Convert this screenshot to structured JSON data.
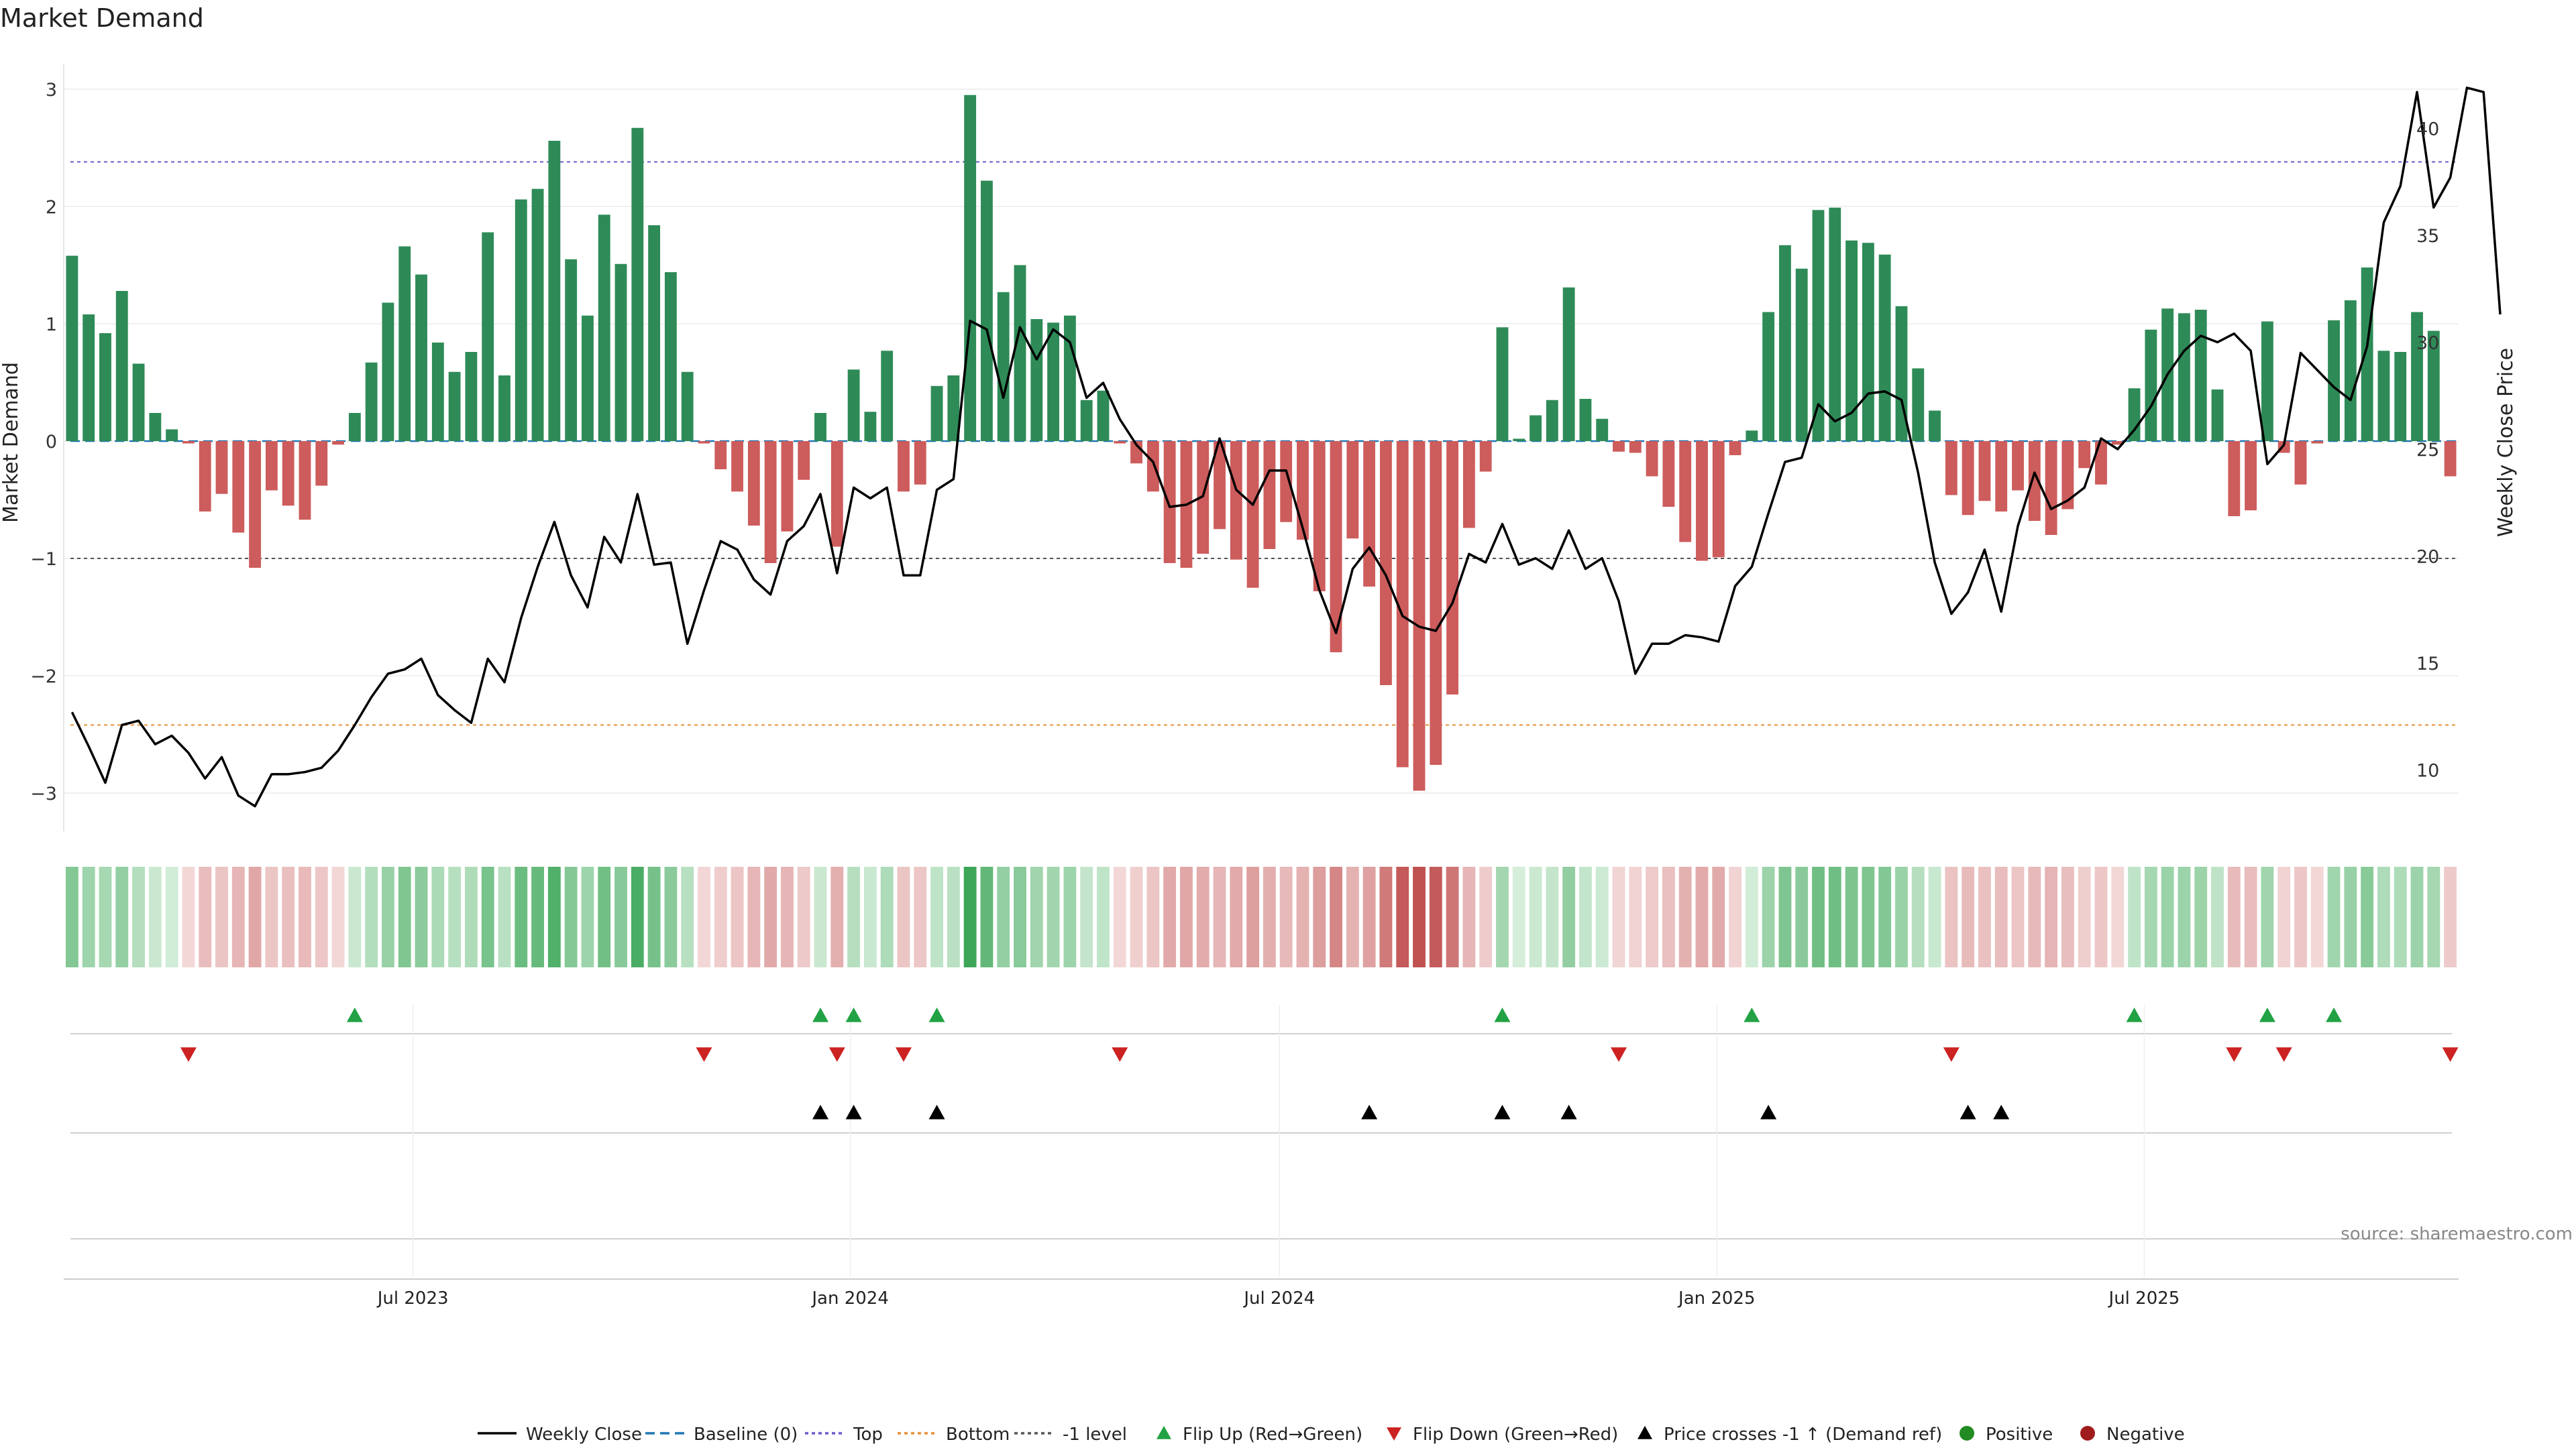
{
  "chart_data": {
    "type": "bar",
    "title": "Market Demand",
    "ylabel": "Market Demand",
    "y2label": "Weekly Close Price",
    "ylim": [
      -3.3,
      3.15
    ],
    "y2lim": [
      8.5,
      43.5
    ],
    "yticks": [
      "3",
      "2",
      "1",
      "0",
      "−1",
      "−2",
      "−3"
    ],
    "yticks_values": [
      3,
      2,
      1,
      0,
      -1,
      -2,
      -3
    ],
    "y2ticks": [
      "40",
      "35",
      "30",
      "25",
      "20",
      "15",
      "10"
    ],
    "y2ticks_values": [
      40,
      35,
      30,
      25,
      20,
      15,
      10
    ],
    "xticks": [
      {
        "label": "Jul 2023",
        "index": 20.5
      },
      {
        "label": "Jan 2024",
        "index": 46.8
      },
      {
        "label": "Jul 2024",
        "index": 72.6
      },
      {
        "label": "Jan 2025",
        "index": 98.9
      },
      {
        "label": "Jul 2025",
        "index": 124.6
      }
    ],
    "reference_lines": {
      "top": 2.38,
      "bottom": -2.42,
      "minus_one": -1,
      "baseline": 0
    },
    "colors": {
      "positive": "#2e8b57",
      "negative": "#cd5c5c",
      "close": "#000000",
      "top_line": "#6a5acd",
      "bottom_line": "#e69138",
      "minus_one_line": "#555555",
      "baseline_line": "#1f77b4",
      "flip_up": "#22a244",
      "flip_down": "#cc2222",
      "cross": "#000000",
      "legend_positive": "#228b22",
      "legend_negative": "#a01c1c"
    },
    "demand": [
      1.58,
      1.08,
      0.92,
      1.28,
      0.66,
      0.24,
      0.1,
      -0.02,
      -0.6,
      -0.45,
      -0.78,
      -1.08,
      -0.42,
      -0.55,
      -0.67,
      -0.38,
      -0.03,
      0.24,
      0.67,
      1.18,
      1.66,
      1.42,
      0.84,
      0.59,
      0.76,
      1.78,
      0.56,
      2.06,
      2.15,
      2.56,
      1.55,
      1.07,
      1.93,
      1.51,
      2.67,
      1.84,
      1.44,
      0.59,
      -0.02,
      -0.24,
      -0.43,
      -0.72,
      -1.04,
      -0.77,
      -0.33,
      0.24,
      -0.9,
      0.61,
      0.25,
      0.77,
      -0.43,
      -0.37,
      0.47,
      0.56,
      2.95,
      2.22,
      1.27,
      1.5,
      1.04,
      1.01,
      1.07,
      0.35,
      0.43,
      -0.02,
      -0.19,
      -0.43,
      -1.04,
      -1.08,
      -0.96,
      -0.75,
      -1.01,
      -1.25,
      -0.92,
      -0.69,
      -0.84,
      -1.28,
      -1.8,
      -0.83,
      -1.24,
      -2.08,
      -2.78,
      -2.98,
      -2.76,
      -2.16,
      -0.74,
      -0.26,
      0.97,
      0.02,
      0.22,
      0.35,
      1.31,
      0.36,
      0.19,
      -0.09,
      -0.1,
      -0.3,
      -0.56,
      -0.86,
      -1.02,
      -0.99,
      -0.12,
      0.09,
      1.1,
      1.67,
      1.47,
      1.97,
      1.99,
      1.71,
      1.69,
      1.59,
      1.15,
      0.62,
      0.26,
      -0.46,
      -0.63,
      -0.51,
      -0.6,
      -0.42,
      -0.68,
      -0.8,
      -0.58,
      -0.23,
      -0.37,
      -0.03,
      0.45,
      0.95,
      1.13,
      1.09,
      1.12,
      0.44,
      -0.64,
      -0.59,
      1.02,
      -0.1,
      -0.37,
      -0.02,
      1.03,
      1.2,
      1.48,
      0.77,
      0.76,
      1.1,
      0.94,
      -0.3
    ],
    "close": [
      12.7,
      11.1,
      9.4,
      12.1,
      12.3,
      11.2,
      11.6,
      10.8,
      9.6,
      10.6,
      8.8,
      8.3,
      9.8,
      9.8,
      9.9,
      10.1,
      10.9,
      12.1,
      13.4,
      14.5,
      14.7,
      15.2,
      13.5,
      12.8,
      12.2,
      15.2,
      14.1,
      17.1,
      19.5,
      21.6,
      19.1,
      17.6,
      20.9,
      19.7,
      22.9,
      19.6,
      19.7,
      15.9,
      18.4,
      20.7,
      20.3,
      18.9,
      18.2,
      20.7,
      21.4,
      22.9,
      19.2,
      23.2,
      22.7,
      23.2,
      19.1,
      19.1,
      23.1,
      23.6,
      31.0,
      30.6,
      27.4,
      30.7,
      29.2,
      30.6,
      30.0,
      27.4,
      28.1,
      26.4,
      25.2,
      24.4,
      22.3,
      22.4,
      22.8,
      25.5,
      23.1,
      22.4,
      24.0,
      24.0,
      21.3,
      18.4,
      16.4,
      19.4,
      20.4,
      19.1,
      17.2,
      16.7,
      16.5,
      17.8,
      20.1,
      19.7,
      21.5,
      19.6,
      19.9,
      19.4,
      21.2,
      19.4,
      19.9,
      17.9,
      14.5,
      15.9,
      15.9,
      16.3,
      16.2,
      16.0,
      18.6,
      19.5,
      22.0,
      24.4,
      24.6,
      27.1,
      26.3,
      26.7,
      27.6,
      27.7,
      27.3,
      23.9,
      19.7,
      17.3,
      18.3,
      20.3,
      17.4,
      21.4,
      23.9,
      22.2,
      22.6,
      23.2,
      25.5,
      25.0,
      25.9,
      27.0,
      28.5,
      29.6,
      30.3,
      30.0,
      30.4,
      29.6,
      24.3,
      25.2,
      29.5,
      28.7,
      27.9,
      27.3,
      29.8,
      35.6,
      37.3,
      41.7,
      36.3,
      37.7,
      41.9,
      41.7,
      31.3
    ],
    "heat": {
      "rows": 2,
      "note": "demand strip"
    },
    "flip_up_idx": [
      17,
      45,
      47,
      52,
      86,
      101,
      124,
      132,
      136
    ],
    "flip_down_idx": [
      7,
      38,
      46,
      50,
      63,
      93,
      113,
      130,
      133,
      143
    ],
    "cross_idx": [
      45,
      47,
      52,
      78,
      86,
      90,
      102,
      114,
      116
    ],
    "legend": [
      {
        "key": "close",
        "label": "Weekly Close"
      },
      {
        "key": "baseline",
        "label": "Baseline (0)"
      },
      {
        "key": "top",
        "label": "Top"
      },
      {
        "key": "bottom",
        "label": "Bottom"
      },
      {
        "key": "minus_one",
        "label": "-1 level"
      },
      {
        "key": "flip_up",
        "label": "Flip Up (Red→Green)"
      },
      {
        "key": "flip_down",
        "label": "Flip Down (Green→Red)"
      },
      {
        "key": "cross",
        "label": "Price crosses -1 ↑ (Demand ref)"
      },
      {
        "key": "positive",
        "label": "Positive"
      },
      {
        "key": "negative",
        "label": "Negative"
      }
    ]
  },
  "source_label": "source: sharemaestro.com"
}
